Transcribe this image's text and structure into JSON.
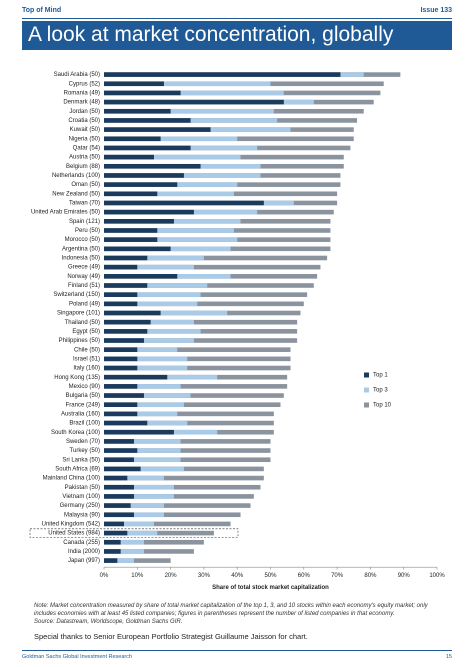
{
  "header": {
    "section": "Top of Mind",
    "issue": "Issue 133"
  },
  "chart_data": {
    "type": "overlay-bar",
    "title": "A look at market concentration, globally",
    "categories": [
      "Saudi Arabia (50)",
      "Cyprus (52)",
      "Romania (49)",
      "Denmark (48)",
      "Jordan (50)",
      "Croatia (50)",
      "Kuwait (50)",
      "Nigeria (50)",
      "Qatar (54)",
      "Austria (50)",
      "Belgium (88)",
      "Netherlands (100)",
      "Oman (50)",
      "New Zealand (50)",
      "Taiwan (70)",
      "United Arab Emirates (50)",
      "Spain (121)",
      "Peru (50)",
      "Morocco (50)",
      "Argentina (50)",
      "Indonesia (50)",
      "Greece (49)",
      "Norway (49)",
      "Finland (51)",
      "Switzerland (150)",
      "Poland (49)",
      "Singapore (101)",
      "Thailand (50)",
      "Egypt (50)",
      "Philippines (50)",
      "Chile (50)",
      "Israel (51)",
      "Italy (160)",
      "Hong Kong (135)",
      "Mexico (90)",
      "Bulgaria (50)",
      "France (249)",
      "Australia (160)",
      "Brazil (100)",
      "South Korea (100)",
      "Sweden (70)",
      "Turkey (50)",
      "Sri Lanka (50)",
      "South Africa (69)",
      "Mainland China (100)",
      "Pakistan (50)",
      "Vietnam (100)",
      "Germany (250)",
      "Malaysia (90)",
      "United Kingdom (542)",
      "United States (984)",
      "Canada (255)",
      "India (2000)",
      "Japan (997)"
    ],
    "series": [
      {
        "name": "Top 10",
        "color": "#8a939e",
        "values": [
          89,
          84,
          83,
          81,
          78,
          76,
          75,
          75,
          74,
          72,
          72,
          71,
          71,
          70,
          70,
          69,
          68,
          68,
          68,
          68,
          67,
          65,
          64,
          63,
          61,
          60,
          59,
          58,
          58,
          58,
          56,
          56,
          56,
          55,
          55,
          54,
          53,
          51,
          51,
          51,
          50,
          50,
          50,
          48,
          48,
          47,
          45,
          44,
          41,
          38,
          33,
          30,
          27,
          20
        ]
      },
      {
        "name": "Top 3",
        "color": "#a9cbe8",
        "values": [
          78,
          50,
          54,
          63,
          51,
          52,
          56,
          40,
          46,
          41,
          47,
          47,
          40,
          39,
          57,
          46,
          41,
          39,
          40,
          38,
          30,
          27,
          38,
          31,
          29,
          28,
          37,
          27,
          29,
          27,
          22,
          25,
          25,
          34,
          23,
          26,
          24,
          22,
          25,
          34,
          23,
          23,
          23,
          24,
          18,
          21,
          21,
          18,
          18,
          15,
          16,
          12,
          12,
          9
        ]
      },
      {
        "name": "Top 1",
        "color": "#1b3a5c",
        "values": [
          71,
          18,
          23,
          54,
          20,
          26,
          32,
          17,
          26,
          15,
          29,
          24,
          22,
          16,
          48,
          27,
          21,
          16,
          16,
          20,
          13,
          10,
          22,
          13,
          10,
          10,
          17,
          14,
          13,
          12,
          10,
          10,
          10,
          19,
          10,
          12,
          10,
          10,
          13,
          21,
          9,
          10,
          9,
          11,
          7,
          9,
          9,
          8,
          9,
          6,
          7,
          5,
          5,
          4
        ]
      }
    ],
    "legend_order": [
      "Top 1",
      "Top 3",
      "Top 10"
    ],
    "xlim": [
      0,
      100
    ],
    "xticks": [
      {
        "value": 0,
        "label": "0%"
      },
      {
        "value": 10,
        "label": "10%"
      },
      {
        "value": 20,
        "label": "20%"
      },
      {
        "value": 30,
        "label": "30%"
      },
      {
        "value": 40,
        "label": "40%"
      },
      {
        "value": 50,
        "label": "50%"
      },
      {
        "value": 60,
        "label": "60%"
      },
      {
        "value": 70,
        "label": "70%"
      },
      {
        "value": 80,
        "label": "80%"
      },
      {
        "value": 90,
        "label": "90%"
      },
      {
        "value": 100,
        "label": "100%"
      }
    ],
    "xlabel": "Share of total stock market capitalization",
    "legend": "right",
    "grid": false
  },
  "notes": {
    "note": "Note: Market concentration measured by share of total market capitalization of the top 1, 3, and 10 stocks within each economy's equity market; only includes economies with at least 45 listed companies; figures in parentheses represent the number of listed companies in that economy.",
    "source": "Source: Datastream, Worldscope, Goldman Sachs GIR.",
    "thanks": "Special thanks to Senior European Portfolio Strategist Guillaume Jaisson for chart."
  },
  "footer": {
    "left": "Goldman Sachs Global Investment Research",
    "page": "15"
  }
}
